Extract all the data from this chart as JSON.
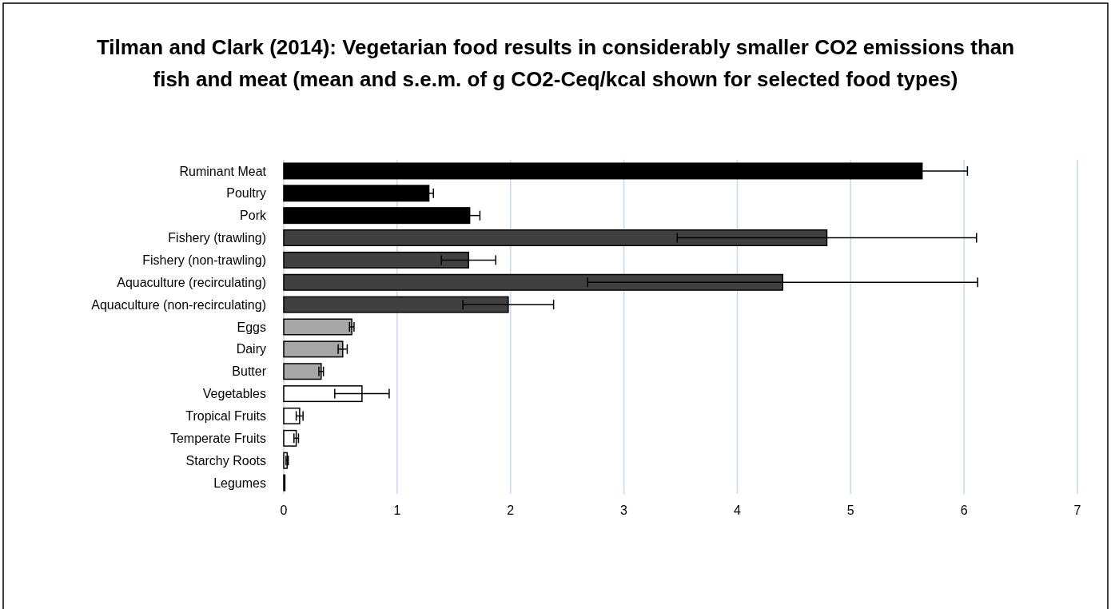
{
  "chart_data": {
    "type": "bar",
    "orientation": "horizontal",
    "title": "Tilman and Clark (2014): Vegetarian food results in considerably smaller CO2 emissions than fish and meat (mean and s.e.m. of g CO2-Ceq/kcal shown for selected food types)",
    "categories": [
      "Ruminant Meat",
      "Poultry",
      "Pork",
      "Fishery (trawling)",
      "Fishery (non-trawling)",
      "Aquaculture (recirculating)",
      "Aquaculture (non-recirculating)",
      "Eggs",
      "Dairy",
      "Butter",
      "Vegetables",
      "Tropical Fruits",
      "Temperate Fruits",
      "Starchy Roots",
      "Legumes"
    ],
    "values": [
      5.63,
      1.28,
      1.64,
      4.79,
      1.63,
      4.4,
      1.98,
      0.6,
      0.52,
      0.33,
      0.69,
      0.14,
      0.11,
      0.03,
      0.01
    ],
    "errors": [
      0.4,
      0.04,
      0.09,
      1.32,
      0.24,
      1.72,
      0.4,
      0.02,
      0.04,
      0.02,
      0.24,
      0.03,
      0.02,
      0.01,
      null
    ],
    "colors": [
      "#000000",
      "#000000",
      "#000000",
      "#404040",
      "#404040",
      "#404040",
      "#404040",
      "#a6a6a6",
      "#a6a6a6",
      "#a6a6a6",
      "#ffffff",
      "#ffffff",
      "#ffffff",
      "#ffffff",
      "#ffffff"
    ],
    "xlim": [
      0,
      7
    ],
    "xticks": [
      0,
      1,
      2,
      3,
      4,
      5,
      6,
      7
    ],
    "grid": "x"
  }
}
